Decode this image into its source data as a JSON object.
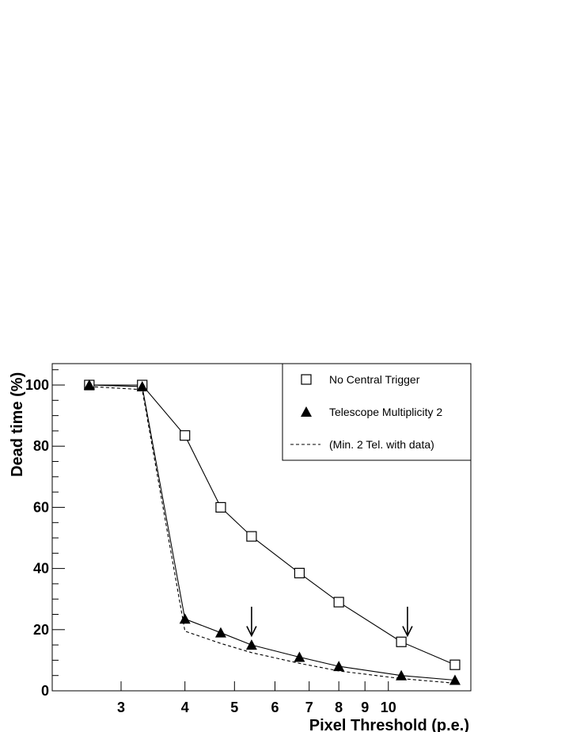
{
  "chart_data": {
    "type": "line",
    "xlabel": "Pixel Threshold (p.e.)",
    "ylabel": "Dead time (%)",
    "xscale": "log",
    "xlim": [
      2.2,
      14.5
    ],
    "ylim": [
      0,
      107
    ],
    "x_ticks": [
      3,
      4,
      5,
      6,
      7,
      8,
      9,
      10
    ],
    "x_tick_labels": [
      "3",
      "4",
      "5",
      "6",
      "7",
      "8",
      "9",
      "10"
    ],
    "y_ticks": [
      0,
      20,
      40,
      60,
      80,
      100
    ],
    "y_tick_labels": [
      "0",
      "20",
      "40",
      "60",
      "80",
      "100"
    ],
    "legend_position": "top-right",
    "series": [
      {
        "name": "No Central Trigger",
        "marker": "open-square",
        "line": "solid",
        "color": "#000000",
        "x": [
          2.6,
          3.3,
          4.0,
          4.7,
          5.4,
          6.7,
          8.0,
          10.6,
          13.5
        ],
        "y": [
          100,
          100,
          83.5,
          60,
          50.5,
          38.5,
          29,
          16,
          8.5
        ]
      },
      {
        "name": "Telescope Multiplicity 2",
        "marker": "filled-triangle",
        "line": "solid",
        "color": "#000000",
        "x": [
          2.6,
          3.3,
          4.0,
          4.7,
          5.4,
          6.7,
          8.0,
          10.6,
          13.5
        ],
        "y": [
          100,
          99.5,
          23.5,
          19,
          15,
          11,
          8,
          5,
          3.5
        ]
      },
      {
        "name": "(Min. 2 Tel. with data)",
        "marker": "none",
        "line": "dashed",
        "color": "#000000",
        "x": [
          2.6,
          3.3,
          4.0,
          4.7,
          5.4,
          6.7,
          8.0,
          10.6,
          13.5
        ],
        "y": [
          99.5,
          98.5,
          19.5,
          15.5,
          12.5,
          9,
          6.5,
          4,
          2.5
        ]
      }
    ],
    "annotations": [
      {
        "type": "arrow-down",
        "x": 5.4,
        "y_from": 27.5,
        "y_to": 18
      },
      {
        "type": "arrow-down",
        "x": 10.9,
        "y_from": 27.5,
        "y_to": 18
      }
    ]
  }
}
